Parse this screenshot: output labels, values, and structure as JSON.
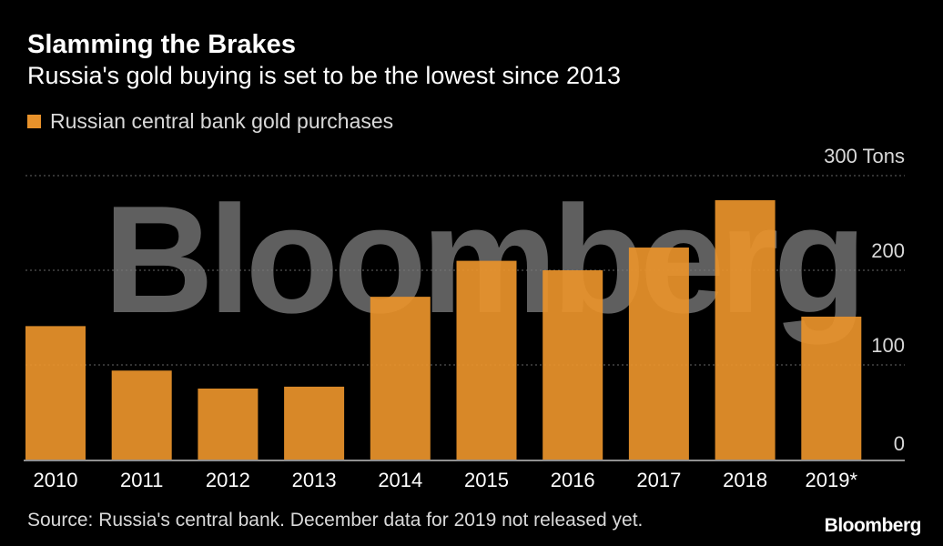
{
  "title": "Slamming the Brakes",
  "subtitle": "Russia's gold buying is set to be the lowest since 2013",
  "legend_label": "Russian central bank gold purchases",
  "source_note": "Source: Russia's central bank. December data for 2019 not released yet.",
  "brand": "Bloomberg",
  "watermark": "Bloomberg",
  "colors": {
    "background": "#000000",
    "bar": "#e8922b",
    "grid": "#666666",
    "text": "#ffffff",
    "muted_text": "#d9d9d9",
    "watermark": "#7a7a7a"
  },
  "chart_data": {
    "type": "bar",
    "title": "Slamming the Brakes",
    "subtitle": "Russia's gold buying is set to be the lowest since 2013",
    "categories": [
      "2010",
      "2011",
      "2012",
      "2013",
      "2014",
      "2015",
      "2016",
      "2017",
      "2018",
      "2019*"
    ],
    "series": [
      {
        "name": "Russian central bank gold purchases",
        "values": [
          141,
          94,
          75,
          77,
          172,
          210,
          200,
          224,
          274,
          151
        ]
      }
    ],
    "ylim": [
      0,
      300
    ],
    "yticks": [
      0,
      100,
      200,
      300
    ],
    "ytick_labels": [
      "0",
      "100",
      "200",
      "300 Tons"
    ],
    "y_axis_position": "right",
    "grid": "horizontal dotted",
    "legend_position": "top-left"
  }
}
